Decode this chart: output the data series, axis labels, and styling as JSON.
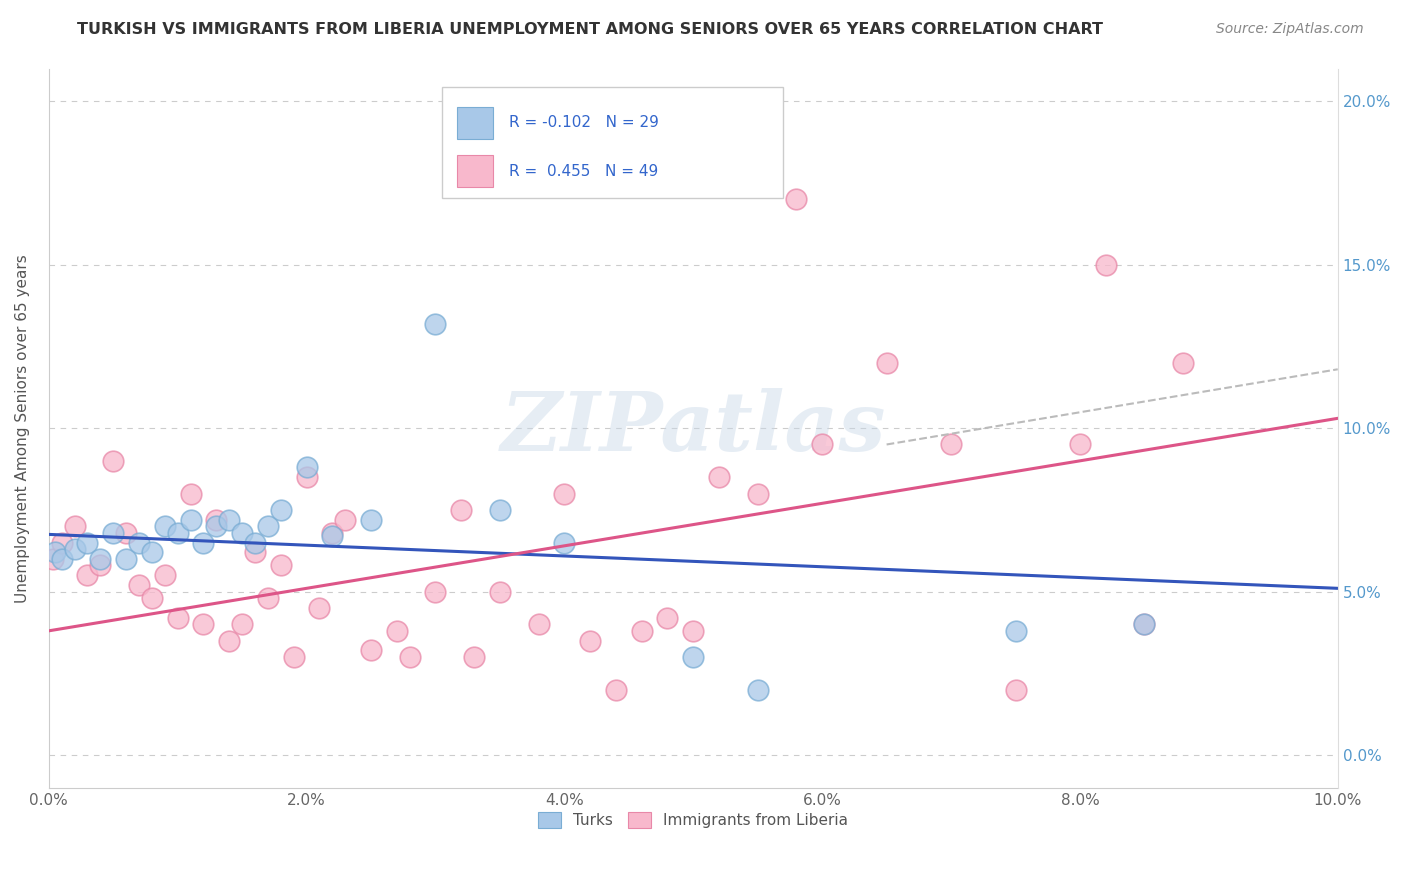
{
  "title": "TURKISH VS IMMIGRANTS FROM LIBERIA UNEMPLOYMENT AMONG SENIORS OVER 65 YEARS CORRELATION CHART",
  "source": "Source: ZipAtlas.com",
  "ylabel": "Unemployment Among Seniors over 65 years",
  "xlim": [
    0,
    0.1
  ],
  "ylim": [
    -0.01,
    0.21
  ],
  "legend_labels": [
    "Turks",
    "Immigrants from Liberia"
  ],
  "turks_R": -0.102,
  "turks_N": 29,
  "liberia_R": 0.455,
  "liberia_N": 49,
  "turks_color": "#a8c8e8",
  "turks_edge_color": "#7aadd4",
  "liberia_color": "#f8b8cc",
  "liberia_edge_color": "#e888a8",
  "turks_line_color": "#3355bb",
  "liberia_line_color": "#dd5588",
  "turks_scatter_x": [
    0.0005,
    0.001,
    0.002,
    0.003,
    0.004,
    0.005,
    0.006,
    0.007,
    0.008,
    0.009,
    0.01,
    0.011,
    0.012,
    0.013,
    0.014,
    0.015,
    0.016,
    0.017,
    0.018,
    0.02,
    0.022,
    0.025,
    0.03,
    0.035,
    0.04,
    0.05,
    0.055,
    0.075,
    0.085
  ],
  "turks_scatter_y": [
    0.062,
    0.06,
    0.063,
    0.065,
    0.06,
    0.068,
    0.06,
    0.065,
    0.062,
    0.07,
    0.068,
    0.072,
    0.065,
    0.07,
    0.072,
    0.068,
    0.065,
    0.07,
    0.075,
    0.088,
    0.067,
    0.072,
    0.132,
    0.075,
    0.065,
    0.03,
    0.02,
    0.038,
    0.04
  ],
  "liberia_scatter_x": [
    0.0003,
    0.001,
    0.002,
    0.003,
    0.004,
    0.005,
    0.006,
    0.007,
    0.008,
    0.009,
    0.01,
    0.011,
    0.012,
    0.013,
    0.014,
    0.015,
    0.016,
    0.017,
    0.018,
    0.019,
    0.02,
    0.021,
    0.022,
    0.023,
    0.025,
    0.027,
    0.028,
    0.03,
    0.032,
    0.033,
    0.035,
    0.038,
    0.04,
    0.042,
    0.044,
    0.046,
    0.048,
    0.05,
    0.052,
    0.055,
    0.058,
    0.06,
    0.065,
    0.07,
    0.075,
    0.08,
    0.082,
    0.085,
    0.088
  ],
  "liberia_scatter_y": [
    0.06,
    0.065,
    0.07,
    0.055,
    0.058,
    0.09,
    0.068,
    0.052,
    0.048,
    0.055,
    0.042,
    0.08,
    0.04,
    0.072,
    0.035,
    0.04,
    0.062,
    0.048,
    0.058,
    0.03,
    0.085,
    0.045,
    0.068,
    0.072,
    0.032,
    0.038,
    0.03,
    0.05,
    0.075,
    0.03,
    0.05,
    0.04,
    0.08,
    0.035,
    0.02,
    0.038,
    0.042,
    0.038,
    0.085,
    0.08,
    0.17,
    0.095,
    0.12,
    0.095,
    0.02,
    0.095,
    0.15,
    0.04,
    0.12
  ],
  "background_color": "#ffffff",
  "grid_color": "#cccccc",
  "watermark_text": "ZIPatlas",
  "watermark_color": "#c8d8e8",
  "watermark_alpha": 0.45,
  "x_tick_vals": [
    0.0,
    0.02,
    0.04,
    0.06,
    0.08,
    0.1
  ],
  "y_tick_vals": [
    0.0,
    0.05,
    0.1,
    0.15,
    0.2
  ]
}
